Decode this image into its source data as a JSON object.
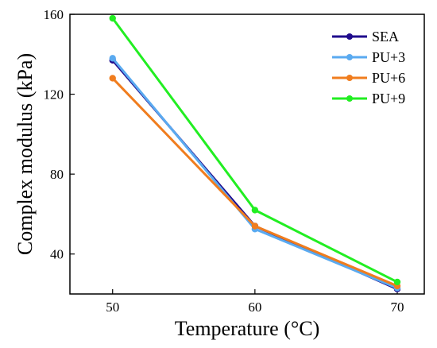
{
  "chart_data": {
    "type": "line",
    "title": "",
    "xlabel": "Temperature (°C)",
    "ylabel": "Complex modulus (kPa)",
    "x": [
      50,
      60,
      70
    ],
    "xticks": [
      "50",
      "60",
      "70"
    ],
    "yticks": [
      "40",
      "80",
      "120",
      "160"
    ],
    "xlim": [
      47.0,
      71.9
    ],
    "ylim": [
      20.0,
      160.0
    ],
    "grid": false,
    "legend_position": "top-right",
    "series": [
      {
        "name": "SEA",
        "color": "#1f0a8c",
        "values": [
          137,
          54,
          22.5
        ]
      },
      {
        "name": "PU+3",
        "color": "#5aaaf0",
        "values": [
          138,
          52.5,
          23
        ]
      },
      {
        "name": "PU+6",
        "color": "#f07d1e",
        "values": [
          128,
          54,
          24
        ]
      },
      {
        "name": "PU+9",
        "color": "#22ee22",
        "values": [
          158,
          62,
          26
        ]
      }
    ]
  }
}
